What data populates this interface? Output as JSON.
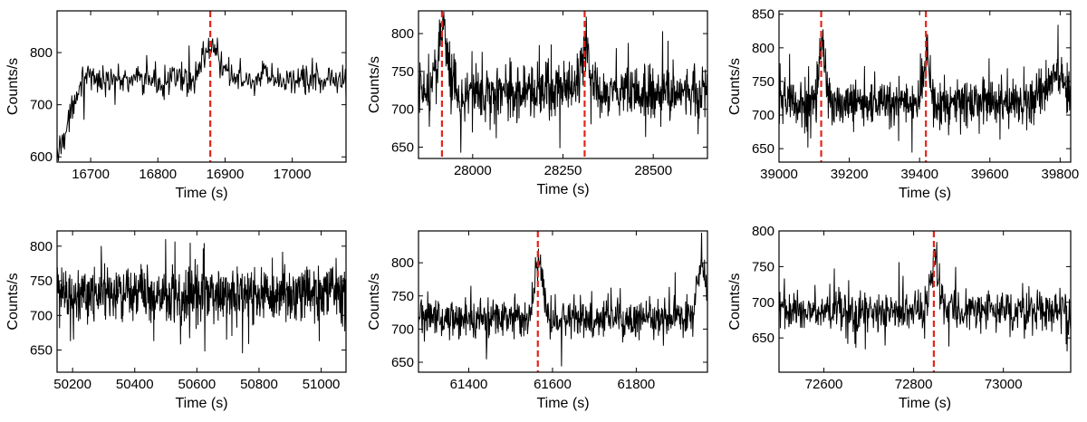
{
  "chart_data": [
    {
      "type": "line",
      "panel": "top-left",
      "xlabel": "Time (s)",
      "ylabel": "Counts/s",
      "xlim": [
        16650,
        17080
      ],
      "ylim": [
        590,
        880
      ],
      "xticks": [
        16700,
        16800,
        16900,
        17000
      ],
      "yticks": [
        600,
        700,
        800
      ],
      "markers": [
        16878
      ],
      "series": [
        {
          "name": "light curve",
          "baseline": 748,
          "noise": 18,
          "n": 430,
          "ramp": {
            "from": 600,
            "until": 16685
          },
          "flares": [
            {
              "x": 16880,
              "amp": 65,
              "width": 12
            }
          ]
        }
      ]
    },
    {
      "type": "line",
      "panel": "top-middle",
      "xlabel": "Time (s)",
      "ylabel": "Counts/s",
      "xlim": [
        27850,
        28650
      ],
      "ylim": [
        635,
        830
      ],
      "xticks": [
        28000,
        28250,
        28500
      ],
      "yticks": [
        650,
        700,
        750,
        800
      ],
      "markers": [
        27915,
        28310
      ],
      "series": [
        {
          "name": "light curve",
          "baseline": 722,
          "noise": 22,
          "n": 800,
          "flares": [
            {
              "x": 27918,
              "amp": 80,
              "width": 14
            },
            {
              "x": 28312,
              "amp": 60,
              "width": 12
            }
          ]
        }
      ]
    },
    {
      "type": "line",
      "panel": "top-right",
      "xlabel": "Time (s)",
      "ylabel": "Counts/s",
      "xlim": [
        39000,
        39830
      ],
      "ylim": [
        630,
        855
      ],
      "xticks": [
        39000,
        39200,
        39400,
        39600,
        39800
      ],
      "yticks": [
        650,
        700,
        750,
        800,
        850
      ],
      "markers": [
        39120,
        39418
      ],
      "series": [
        {
          "name": "light curve",
          "baseline": 718,
          "noise": 20,
          "n": 830,
          "flares": [
            {
              "x": 39122,
              "amp": 95,
              "width": 8
            },
            {
              "x": 39420,
              "amp": 70,
              "width": 9
            },
            {
              "x": 39790,
              "amp": 40,
              "width": 30
            }
          ]
        }
      ]
    },
    {
      "type": "line",
      "panel": "bottom-left",
      "xlabel": "Time (s)",
      "ylabel": "Counts/s",
      "xlim": [
        50150,
        51080
      ],
      "ylim": [
        618,
        822
      ],
      "xticks": [
        50200,
        50400,
        50600,
        50800,
        51000
      ],
      "yticks": [
        650,
        700,
        750,
        800
      ],
      "markers": [],
      "series": [
        {
          "name": "light curve",
          "baseline": 730,
          "noise": 24,
          "n": 930,
          "flares": []
        }
      ]
    },
    {
      "type": "line",
      "panel": "bottom-middle",
      "xlabel": "Time (s)",
      "ylabel": "Counts/s",
      "xlim": [
        61280,
        61970
      ],
      "ylim": [
        635,
        848
      ],
      "xticks": [
        61400,
        61600,
        61800
      ],
      "yticks": [
        650,
        700,
        750,
        800
      ],
      "markers": [
        61565
      ],
      "series": [
        {
          "name": "light curve",
          "baseline": 718,
          "noise": 18,
          "n": 690,
          "flares": [
            {
              "x": 61568,
              "amp": 85,
              "width": 9
            },
            {
              "x": 61955,
              "amp": 80,
              "width": 10
            }
          ]
        }
      ]
    },
    {
      "type": "line",
      "panel": "bottom-right",
      "xlabel": "Time (s)",
      "ylabel": "Counts/s",
      "xlim": [
        72500,
        73150
      ],
      "ylim": [
        602,
        800
      ],
      "xticks": [
        72600,
        72800,
        73000
      ],
      "yticks": [
        650,
        700,
        750,
        800
      ],
      "markers": [
        72845
      ],
      "series": [
        {
          "name": "light curve",
          "baseline": 688,
          "noise": 18,
          "n": 650,
          "flares": [
            {
              "x": 72848,
              "amp": 85,
              "width": 8
            }
          ]
        }
      ]
    }
  ]
}
